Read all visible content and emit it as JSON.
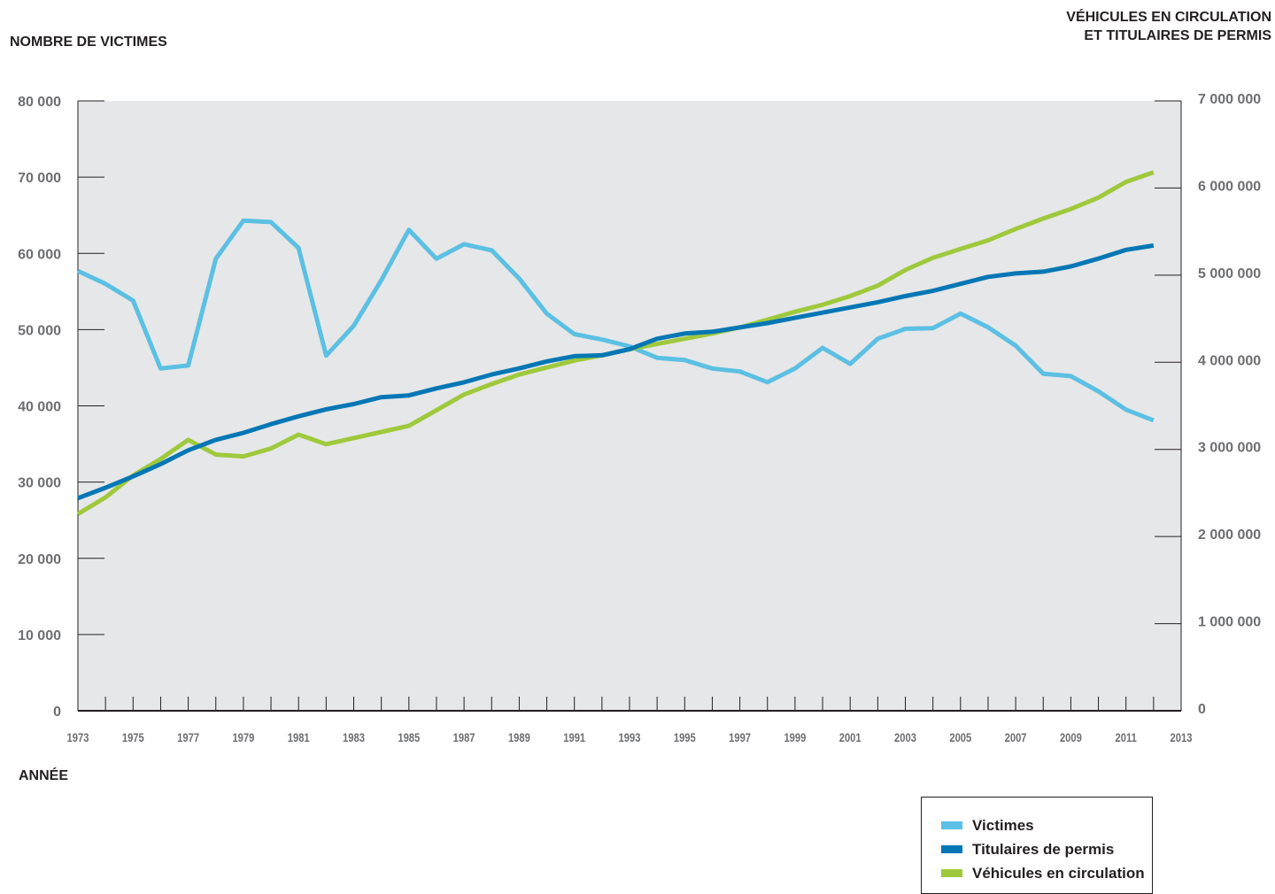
{
  "chart_data": {
    "type": "line",
    "ylabel_left": "NOMBRE DE VICTIMES",
    "ylabel_right_line1": "VÉHICULES EN CIRCULATION",
    "ylabel_right_line2": "ET TITULAIRES DE PERMIS",
    "xlabel": "ANNÉE",
    "x": [
      1973,
      1974,
      1975,
      1976,
      1977,
      1978,
      1979,
      1980,
      1981,
      1982,
      1983,
      1984,
      1985,
      1986,
      1987,
      1988,
      1989,
      1990,
      1991,
      1992,
      1993,
      1994,
      1995,
      1996,
      1997,
      1998,
      1999,
      2000,
      2001,
      2002,
      2003,
      2004,
      2005,
      2006,
      2007,
      2008,
      2009,
      2010,
      2011,
      2012,
      2013
    ],
    "x_tick_labels": [
      "1973",
      "1975",
      "1977",
      "1979",
      "1981",
      "1983",
      "1985",
      "1987",
      "1989",
      "1991",
      "1993",
      "1995",
      "1997",
      "1999",
      "2001",
      "2003",
      "2005",
      "2007",
      "2009",
      "2011",
      "2013"
    ],
    "x_range": [
      1973,
      2013
    ],
    "y_left_range": [
      0,
      80000
    ],
    "y_left_ticks": [
      0,
      10000,
      20000,
      30000,
      40000,
      50000,
      60000,
      70000,
      80000
    ],
    "y_left_tick_labels": [
      "0",
      "10 000",
      "20 000",
      "30 000",
      "40 000",
      "50 000",
      "60 000",
      "70 000",
      "80 000"
    ],
    "y_right_range": [
      0,
      7000000
    ],
    "y_right_ticks": [
      0,
      1000000,
      2000000,
      3000000,
      4000000,
      5000000,
      6000000,
      7000000
    ],
    "y_right_tick_labels": [
      "0",
      "1 000 000",
      "2 000 000",
      "3 000 000",
      "4 000 000",
      "5 000 000",
      "6 000 000",
      "7 000 000"
    ],
    "grid": false,
    "plot_background": "#e6e7e8",
    "legend_position": "bottom-right",
    "series": [
      {
        "name": "Victimes",
        "axis": "left",
        "color": "#5bc0e3",
        "values": [
          57700,
          56000,
          53800,
          44900,
          45300,
          59300,
          64300,
          64100,
          60700,
          46600,
          50500,
          56500,
          63100,
          59300,
          61200,
          60400,
          56700,
          52100,
          49400,
          48700,
          47800,
          46300,
          46000,
          44900,
          44500,
          43100,
          44900,
          47600,
          45500,
          48800,
          50100,
          50200,
          52100,
          50300,
          47900,
          44200,
          43900,
          41900,
          39500,
          38100,
          null
        ]
      },
      {
        "name": "Titulaires de permis",
        "axis": "right",
        "color": "#0377b5",
        "values": [
          2440000,
          2560000,
          2690000,
          2830000,
          2990000,
          3110000,
          3190000,
          3290000,
          3380000,
          3460000,
          3520000,
          3600000,
          3620000,
          3700000,
          3770000,
          3860000,
          3930000,
          4010000,
          4070000,
          4080000,
          4150000,
          4270000,
          4330000,
          4350000,
          4400000,
          4450000,
          4510000,
          4570000,
          4630000,
          4690000,
          4760000,
          4820000,
          4900000,
          4980000,
          5020000,
          5040000,
          5100000,
          5190000,
          5290000,
          5340000,
          null
        ]
      },
      {
        "name": "Véhicules en circulation",
        "axis": "right",
        "color": "#9fc93c",
        "values": [
          2260000,
          2450000,
          2700000,
          2890000,
          3110000,
          2940000,
          2920000,
          3010000,
          3170000,
          3060000,
          3130000,
          3200000,
          3270000,
          3450000,
          3630000,
          3750000,
          3860000,
          3940000,
          4020000,
          4080000,
          4150000,
          4210000,
          4270000,
          4330000,
          4400000,
          4490000,
          4580000,
          4660000,
          4760000,
          4880000,
          5060000,
          5200000,
          5300000,
          5400000,
          5530000,
          5650000,
          5760000,
          5890000,
          6070000,
          6180000,
          null
        ]
      }
    ]
  }
}
